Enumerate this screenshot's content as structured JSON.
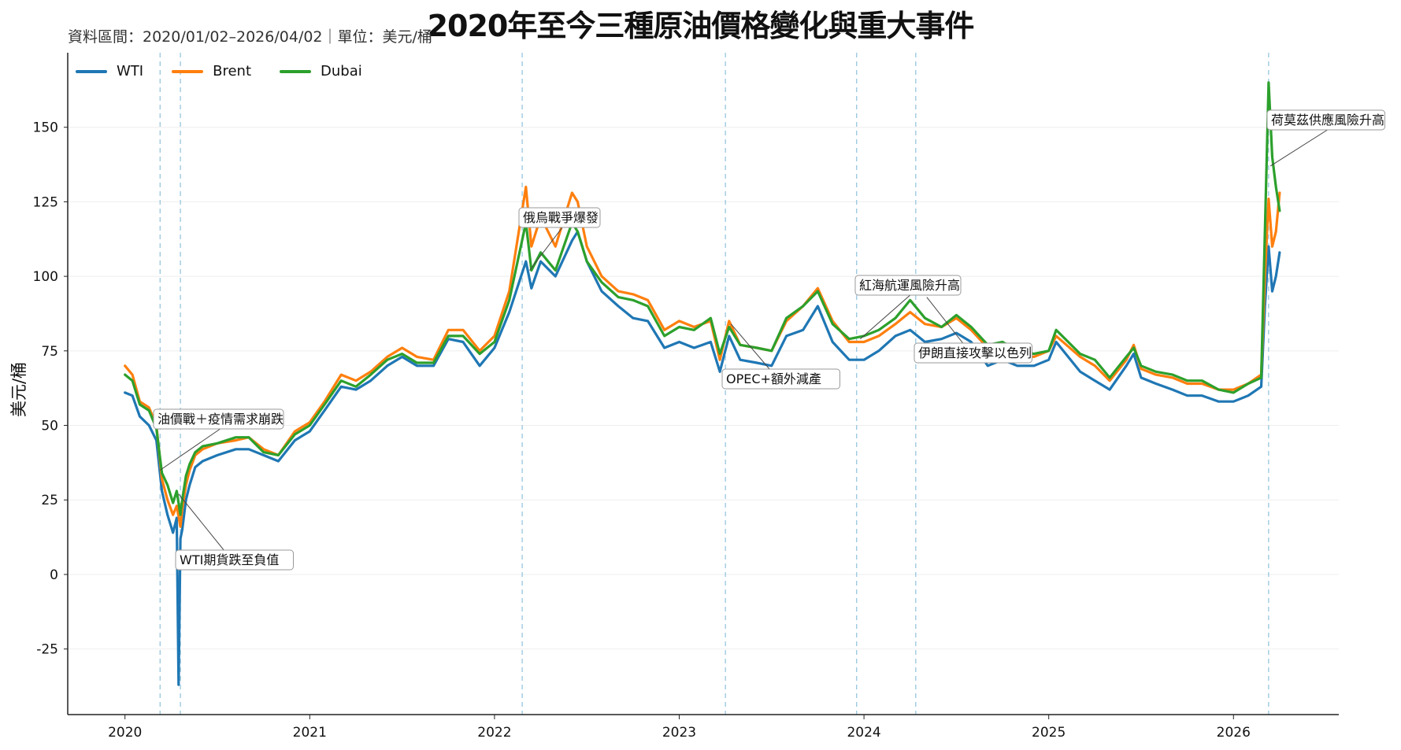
{
  "chart_data": {
    "type": "line",
    "title": "2020年至今三種原油價格變化與重大事件",
    "subtitle": "資料區間：2020/01/02–2026/04/02｜單位：美元/桶",
    "ylabel": "美元/桶",
    "xlabel": "",
    "ylim": [
      -47,
      175
    ],
    "xlim": [
      2019.69,
      2026.57
    ],
    "yticks": [
      -25,
      0,
      25,
      50,
      75,
      100,
      125,
      150
    ],
    "xticks": [
      2020,
      2021,
      2022,
      2023,
      2024,
      2025,
      2026
    ],
    "grid": "horizontal",
    "legend_position": "top-left",
    "colors": {
      "WTI": "#1f77b4",
      "Brent": "#ff7f0e",
      "Dubai": "#2ca02c",
      "event_line": "#9ecae1"
    },
    "series": [
      {
        "name": "WTI",
        "x": [
          2020.0,
          2020.04,
          2020.08,
          2020.13,
          2020.17,
          2020.2,
          2020.23,
          2020.26,
          2020.28,
          2020.29,
          2020.3,
          2020.31,
          2020.33,
          2020.35,
          2020.38,
          2020.42,
          2020.5,
          2020.6,
          2020.67,
          2020.75,
          2020.83,
          2020.92,
          2021.0,
          2021.08,
          2021.17,
          2021.25,
          2021.33,
          2021.42,
          2021.5,
          2021.58,
          2021.67,
          2021.75,
          2021.83,
          2021.92,
          2022.0,
          2022.08,
          2022.17,
          2022.2,
          2022.25,
          2022.33,
          2022.42,
          2022.45,
          2022.5,
          2022.58,
          2022.67,
          2022.75,
          2022.83,
          2022.92,
          2023.0,
          2023.08,
          2023.17,
          2023.22,
          2023.27,
          2023.33,
          2023.42,
          2023.5,
          2023.58,
          2023.67,
          2023.75,
          2023.83,
          2023.92,
          2024.0,
          2024.08,
          2024.17,
          2024.25,
          2024.33,
          2024.42,
          2024.5,
          2024.58,
          2024.67,
          2024.75,
          2024.83,
          2024.92,
          2025.0,
          2025.04,
          2025.17,
          2025.25,
          2025.33,
          2025.42,
          2025.46,
          2025.5,
          2025.58,
          2025.67,
          2025.75,
          2025.83,
          2025.92,
          2026.0,
          2026.08,
          2026.15,
          2026.17,
          2026.19,
          2026.21,
          2026.23,
          2026.25
        ],
        "values": [
          61,
          60,
          53,
          50,
          45,
          28,
          20,
          14,
          19,
          -37,
          12,
          15,
          25,
          30,
          36,
          38,
          40,
          42,
          42,
          40,
          38,
          45,
          48,
          55,
          63,
          62,
          65,
          70,
          73,
          70,
          70,
          79,
          78,
          70,
          76,
          88,
          105,
          96,
          105,
          100,
          112,
          115,
          105,
          95,
          90,
          86,
          85,
          76,
          78,
          76,
          78,
          68,
          80,
          72,
          71,
          70,
          80,
          82,
          90,
          78,
          72,
          72,
          75,
          80,
          82,
          78,
          79,
          81,
          78,
          70,
          72,
          70,
          70,
          72,
          78,
          68,
          65,
          62,
          70,
          74,
          66,
          64,
          62,
          60,
          60,
          58,
          58,
          60,
          63,
          90,
          110,
          95,
          100,
          108
        ]
      },
      {
        "name": "Brent",
        "x": [
          2020.0,
          2020.04,
          2020.08,
          2020.13,
          2020.17,
          2020.2,
          2020.23,
          2020.26,
          2020.28,
          2020.3,
          2020.31,
          2020.33,
          2020.35,
          2020.38,
          2020.42,
          2020.5,
          2020.6,
          2020.67,
          2020.75,
          2020.83,
          2020.92,
          2021.0,
          2021.08,
          2021.17,
          2021.25,
          2021.33,
          2021.42,
          2021.5,
          2021.58,
          2021.67,
          2021.75,
          2021.83,
          2021.92,
          2022.0,
          2022.08,
          2022.17,
          2022.2,
          2022.25,
          2022.33,
          2022.42,
          2022.45,
          2022.5,
          2022.58,
          2022.67,
          2022.75,
          2022.83,
          2022.92,
          2023.0,
          2023.08,
          2023.17,
          2023.22,
          2023.27,
          2023.33,
          2023.42,
          2023.5,
          2023.58,
          2023.67,
          2023.75,
          2023.83,
          2023.92,
          2024.0,
          2024.08,
          2024.17,
          2024.25,
          2024.33,
          2024.42,
          2024.5,
          2024.58,
          2024.67,
          2024.75,
          2024.83,
          2024.92,
          2025.0,
          2025.04,
          2025.17,
          2025.25,
          2025.33,
          2025.42,
          2025.46,
          2025.5,
          2025.58,
          2025.67,
          2025.75,
          2025.83,
          2025.92,
          2026.0,
          2026.08,
          2026.15,
          2026.17,
          2026.19,
          2026.21,
          2026.23,
          2026.25
        ],
        "values": [
          70,
          67,
          58,
          56,
          50,
          32,
          25,
          20,
          23,
          16,
          22,
          30,
          35,
          40,
          42,
          44,
          45,
          46,
          42,
          40,
          48,
          51,
          58,
          67,
          65,
          68,
          73,
          76,
          73,
          72,
          82,
          82,
          75,
          80,
          95,
          130,
          110,
          120,
          110,
          128,
          125,
          110,
          100,
          95,
          94,
          92,
          82,
          85,
          83,
          85,
          72,
          85,
          77,
          76,
          75,
          85,
          90,
          96,
          85,
          78,
          78,
          80,
          84,
          88,
          84,
          83,
          86,
          82,
          76,
          77,
          74,
          73,
          75,
          80,
          73,
          70,
          65,
          72,
          77,
          69,
          67,
          66,
          64,
          64,
          62,
          62,
          64,
          67,
          100,
          126,
          110,
          115,
          128
        ]
      },
      {
        "name": "Dubai",
        "x": [
          2020.0,
          2020.04,
          2020.08,
          2020.13,
          2020.17,
          2020.2,
          2020.23,
          2020.26,
          2020.28,
          2020.3,
          2020.31,
          2020.33,
          2020.35,
          2020.38,
          2020.42,
          2020.5,
          2020.6,
          2020.67,
          2020.75,
          2020.83,
          2020.92,
          2021.0,
          2021.08,
          2021.17,
          2021.25,
          2021.33,
          2021.42,
          2021.5,
          2021.58,
          2021.67,
          2021.75,
          2021.83,
          2021.92,
          2022.0,
          2022.08,
          2022.17,
          2022.2,
          2022.25,
          2022.33,
          2022.42,
          2022.45,
          2022.5,
          2022.58,
          2022.67,
          2022.75,
          2022.83,
          2022.92,
          2023.0,
          2023.08,
          2023.17,
          2023.22,
          2023.27,
          2023.33,
          2023.42,
          2023.5,
          2023.58,
          2023.67,
          2023.75,
          2023.83,
          2023.92,
          2024.0,
          2024.08,
          2024.17,
          2024.25,
          2024.33,
          2024.42,
          2024.5,
          2024.58,
          2024.67,
          2024.75,
          2024.83,
          2024.92,
          2025.0,
          2025.04,
          2025.17,
          2025.25,
          2025.33,
          2025.42,
          2025.46,
          2025.5,
          2025.58,
          2025.67,
          2025.75,
          2025.83,
          2025.92,
          2026.0,
          2026.08,
          2026.15,
          2026.17,
          2026.19,
          2026.21,
          2026.23,
          2026.25
        ],
        "values": [
          67,
          65,
          57,
          55,
          49,
          34,
          30,
          24,
          28,
          20,
          25,
          33,
          37,
          41,
          43,
          44,
          46,
          46,
          41,
          40,
          47,
          50,
          57,
          65,
          63,
          67,
          72,
          74,
          71,
          71,
          80,
          80,
          74,
          78,
          92,
          118,
          102,
          108,
          102,
          118,
          115,
          105,
          98,
          93,
          92,
          90,
          80,
          83,
          82,
          86,
          74,
          83,
          77,
          76,
          75,
          86,
          90,
          95,
          84,
          79,
          80,
          82,
          86,
          92,
          86,
          83,
          87,
          83,
          77,
          78,
          75,
          74,
          75,
          82,
          74,
          72,
          66,
          73,
          76,
          70,
          68,
          67,
          65,
          65,
          62,
          61,
          64,
          66,
          115,
          165,
          140,
          130,
          122
        ]
      }
    ],
    "events": [
      {
        "x": 2020.19,
        "label": "油價戰＋疫情需求崩跌"
      },
      {
        "x": 2020.3,
        "label": "WTI期貨跌至負值"
      },
      {
        "x": 2022.15,
        "label": "俄烏戰爭爆發"
      },
      {
        "x": 2023.25,
        "label": "OPEC+額外減產"
      },
      {
        "x": 2023.96,
        "label": "紅海航運風險升高"
      },
      {
        "x": 2024.28,
        "label": "伊朗直接攻擊以色列"
      },
      {
        "x": 2026.19,
        "label": "荷莫茲供應風險升高"
      }
    ]
  }
}
